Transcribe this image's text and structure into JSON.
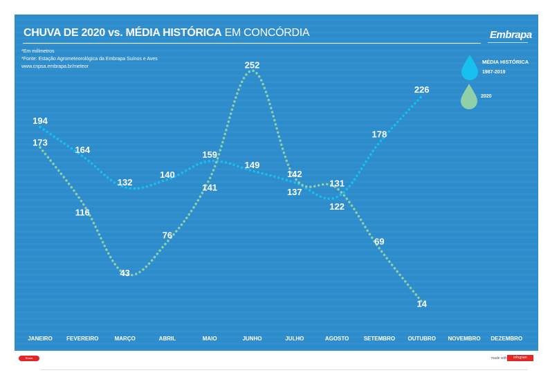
{
  "header": {
    "title_bold": "CHUVA DE 2020 vs. MÉDIA HISTÓRICA",
    "title_light": "EM CONCÓRDIA",
    "logo": "Embrapa"
  },
  "notes": [
    "*Em milímetros",
    "*Fonte: Estação Agrometeorológica da Embrapa Suínos e Aves",
    "www.cnpsa.embrapa.br/meteor"
  ],
  "colors": {
    "background": "#2d8ccb",
    "historic": "#18c0f0",
    "y2020": "#8fd0a8"
  },
  "legend": {
    "historic_line1": "MÉDIA HISTÓRICA",
    "historic_line2": "1987-2019",
    "y2020": "2020"
  },
  "footer": {
    "left_badge": "Share",
    "made_with": "made with",
    "right_badge": "infogram"
  },
  "chart_data": {
    "type": "line",
    "title": "CHUVA DE 2020 vs. MÉDIA HISTÓRICA EM CONCÓRDIA",
    "ylabel": "mm",
    "xlabel": "",
    "categories": [
      "JANEIRO",
      "FEVEREIRO",
      "MARÇO",
      "ABRIL",
      "MAIO",
      "JUNHO",
      "JULHO",
      "AGOSTO",
      "SETEMBRO",
      "OUTUBRO",
      "NOVEMBRO",
      "DEZEMBRO"
    ],
    "series": [
      {
        "name": "MÉDIA HISTÓRICA 1987-2019",
        "key": "historic",
        "values": [
          194,
          164,
          132,
          140,
          159,
          149,
          137,
          122,
          178,
          226,
          null,
          null
        ]
      },
      {
        "name": "2020",
        "key": "y2020",
        "values": [
          173,
          116,
          43,
          76,
          141,
          252,
          142,
          131,
          69,
          14,
          null,
          null
        ]
      }
    ],
    "ylim": [
      0,
      260
    ],
    "grid": false,
    "legend_position": "top-right"
  }
}
